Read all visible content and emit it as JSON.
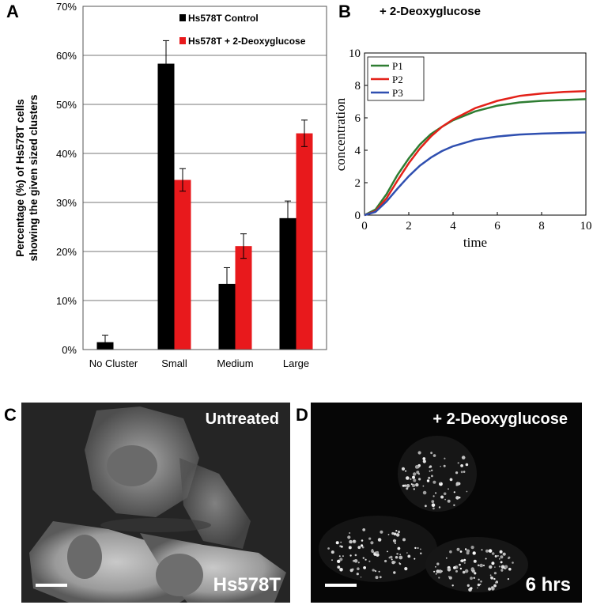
{
  "panels": {
    "a": "A",
    "b": "B",
    "c": "C",
    "d": "D"
  },
  "chart_data": [
    {
      "type": "bar",
      "ylabel_line1": "Percentage (%) of Hs578T cells",
      "ylabel_line2": "showing the given sized clusters",
      "categories": [
        "No Cluster",
        "Small",
        "Medium",
        "Large"
      ],
      "ytick_labels": [
        "0%",
        "10%",
        "20%",
        "30%",
        "40%",
        "50%",
        "60%",
        "70%"
      ],
      "ylim": [
        0,
        70
      ],
      "grid": true,
      "legend_position": "top-right",
      "series": [
        {
          "name": "Hs578T Control",
          "color": "#000000",
          "values": [
            1.5,
            58.3,
            13.4,
            26.8
          ],
          "errors": [
            1.4,
            4.7,
            3.3,
            3.5
          ]
        },
        {
          "name": "Hs578T + 2-Deoxyglucose",
          "color": "#e8191c",
          "values": [
            0,
            34.6,
            21.1,
            44.1
          ],
          "errors": [
            0,
            2.3,
            2.5,
            2.7
          ]
        }
      ]
    },
    {
      "type": "line",
      "title": "+ 2-Deoxyglucose",
      "xlabel": "time",
      "ylabel": "concentration",
      "xlim": [
        0,
        10
      ],
      "ylim": [
        0,
        10
      ],
      "xticks": [
        0,
        2,
        4,
        6,
        8,
        10
      ],
      "yticks": [
        0,
        2,
        4,
        6,
        8,
        10
      ],
      "legend_position": "top-left",
      "series": [
        {
          "name": "P1",
          "color": "#2e7d32",
          "x": [
            0,
            0.5,
            1,
            1.5,
            2,
            2.5,
            3,
            3.5,
            4,
            5,
            6,
            7,
            8,
            9,
            10
          ],
          "y": [
            0,
            0.35,
            1.3,
            2.5,
            3.5,
            4.35,
            5.0,
            5.45,
            5.85,
            6.4,
            6.75,
            6.95,
            7.05,
            7.1,
            7.15
          ]
        },
        {
          "name": "P2",
          "color": "#e32119",
          "x": [
            0,
            0.5,
            1,
            1.5,
            2,
            2.5,
            3,
            3.5,
            4,
            5,
            6,
            7,
            8,
            9,
            10
          ],
          "y": [
            0,
            0.25,
            1.05,
            2.15,
            3.2,
            4.1,
            4.85,
            5.45,
            5.9,
            6.6,
            7.05,
            7.35,
            7.5,
            7.6,
            7.65
          ]
        },
        {
          "name": "P3",
          "color": "#2f4fb0",
          "x": [
            0,
            0.5,
            1,
            1.5,
            2,
            2.5,
            3,
            3.5,
            4,
            5,
            6,
            7,
            8,
            9,
            10
          ],
          "y": [
            0,
            0.2,
            0.85,
            1.65,
            2.4,
            3.05,
            3.55,
            3.95,
            4.25,
            4.65,
            4.85,
            4.97,
            5.03,
            5.07,
            5.1
          ]
        }
      ]
    }
  ],
  "micrographs": {
    "c": {
      "top_label": "Untreated",
      "bottom_label": "Hs578T"
    },
    "d": {
      "top_label": "+ 2-Deoxyglucose",
      "bottom_label": "6 hrs"
    }
  }
}
